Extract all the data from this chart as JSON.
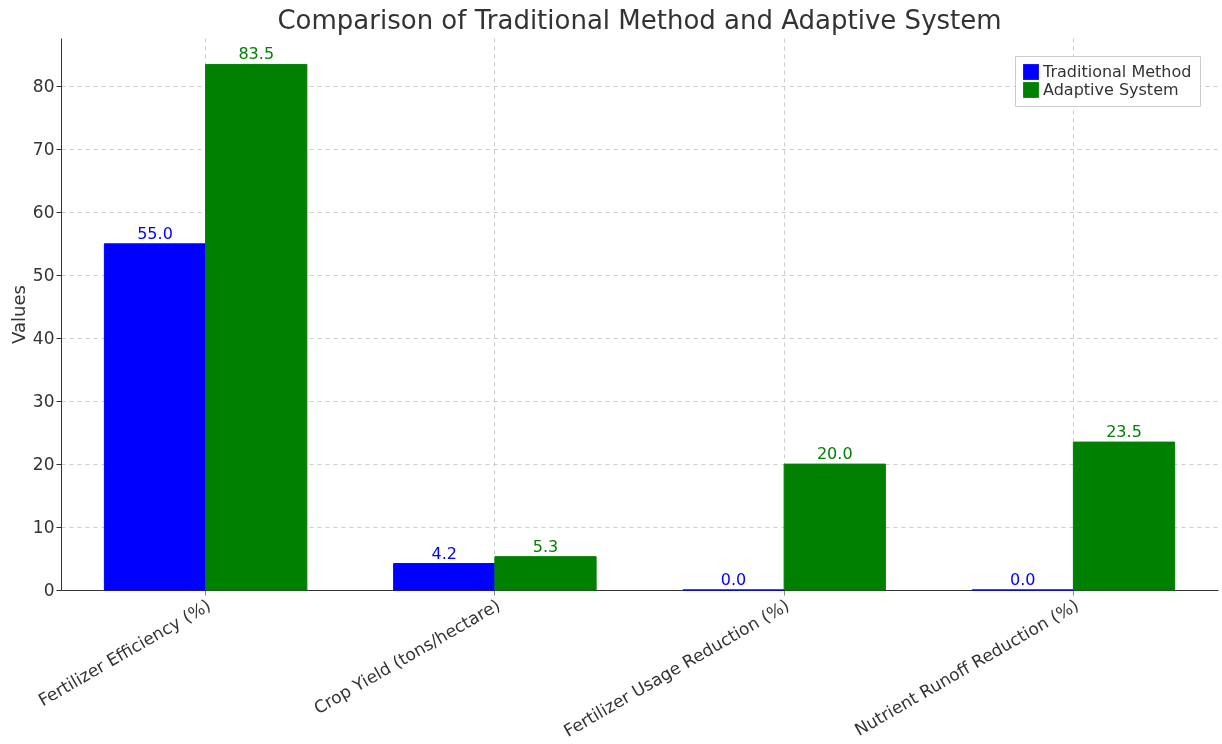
{
  "chart_data": {
    "type": "bar",
    "title": "Comparison of Traditional Method and Adaptive System",
    "ylabel": "Values",
    "categories": [
      "Fertilizer Efficiency (%)",
      "Crop Yield (tons/hectare)",
      "Fertilizer Usage Reduction (%)",
      "Nutrient Runoff Reduction (%)"
    ],
    "series": [
      {
        "name": "Traditional Method",
        "color": "#0000ff",
        "values": [
          55.0,
          4.2,
          0.0,
          0.0
        ],
        "value_labels": [
          "55.0",
          "4.2",
          "0.0",
          "0.0"
        ]
      },
      {
        "name": "Adaptive System",
        "color": "#008000",
        "values": [
          83.5,
          5.3,
          20.0,
          23.5
        ],
        "value_labels": [
          "83.5",
          "5.3",
          "20.0",
          "23.5"
        ]
      }
    ],
    "ylim": [
      0,
      87.7
    ],
    "yticks": [
      0,
      10,
      20,
      30,
      40,
      50,
      60,
      70,
      80
    ],
    "grid": true,
    "legend": "top right"
  }
}
